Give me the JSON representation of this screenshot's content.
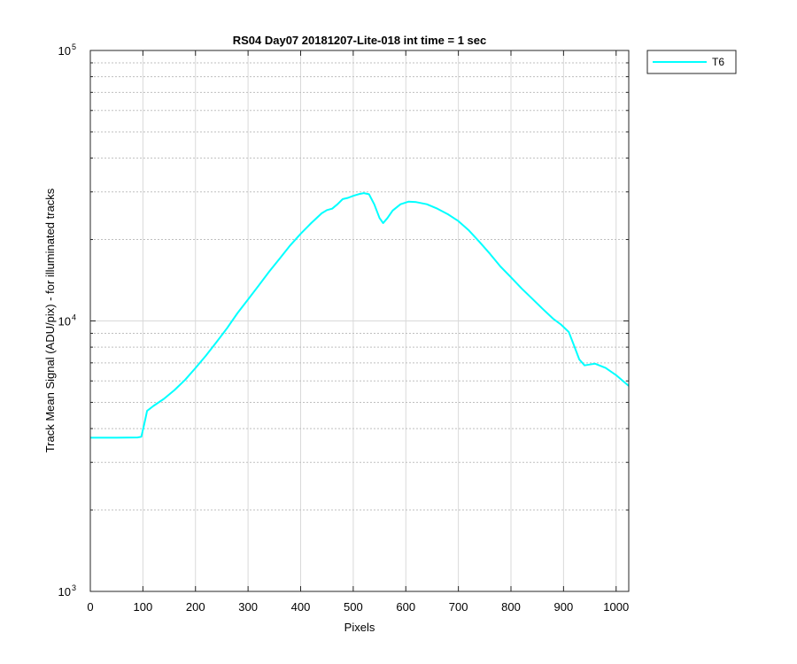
{
  "chart_data": {
    "type": "line",
    "title": "RS04 Day07 20181207-Lite-018 int time = 1 sec",
    "xlabel": "Pixels",
    "ylabel": "Track Mean Signal (ADU/pix) - for illuminated tracks",
    "xlim": [
      0,
      1024
    ],
    "ylim": [
      1000,
      100000
    ],
    "yscale": "log",
    "grid": true,
    "minor_grid": true,
    "legend_position": "outside-top-right",
    "x_ticks": [
      "0",
      "100",
      "200",
      "300",
      "400",
      "500",
      "600",
      "700",
      "800",
      "900",
      "1000"
    ],
    "y_ticks": [
      {
        "base": "10",
        "exp": "3"
      },
      {
        "base": "10",
        "exp": "4"
      },
      {
        "base": "10",
        "exp": "5"
      }
    ],
    "series": [
      {
        "name": "T6",
        "color": "#00ffff",
        "points": [
          [
            0,
            3700
          ],
          [
            50,
            3700
          ],
          [
            90,
            3710
          ],
          [
            97,
            3730
          ],
          [
            103,
            4200
          ],
          [
            108,
            4650
          ],
          [
            120,
            4850
          ],
          [
            140,
            5150
          ],
          [
            160,
            5550
          ],
          [
            180,
            6050
          ],
          [
            200,
            6700
          ],
          [
            220,
            7450
          ],
          [
            240,
            8350
          ],
          [
            260,
            9400
          ],
          [
            280,
            10700
          ],
          [
            300,
            12000
          ],
          [
            320,
            13500
          ],
          [
            340,
            15200
          ],
          [
            360,
            17000
          ],
          [
            380,
            19000
          ],
          [
            400,
            21000
          ],
          [
            420,
            23000
          ],
          [
            440,
            25000
          ],
          [
            450,
            25700
          ],
          [
            460,
            26000
          ],
          [
            470,
            27000
          ],
          [
            480,
            28200
          ],
          [
            490,
            28500
          ],
          [
            500,
            29000
          ],
          [
            510,
            29400
          ],
          [
            520,
            29700
          ],
          [
            530,
            29400
          ],
          [
            540,
            27000
          ],
          [
            550,
            24000
          ],
          [
            557,
            23000
          ],
          [
            565,
            24000
          ],
          [
            575,
            25600
          ],
          [
            590,
            27000
          ],
          [
            605,
            27600
          ],
          [
            620,
            27500
          ],
          [
            640,
            27000
          ],
          [
            660,
            26000
          ],
          [
            680,
            24800
          ],
          [
            700,
            23400
          ],
          [
            720,
            21600
          ],
          [
            740,
            19600
          ],
          [
            760,
            17700
          ],
          [
            780,
            15900
          ],
          [
            800,
            14500
          ],
          [
            820,
            13200
          ],
          [
            840,
            12100
          ],
          [
            860,
            11100
          ],
          [
            880,
            10200
          ],
          [
            895,
            9700
          ],
          [
            910,
            9100
          ],
          [
            920,
            8100
          ],
          [
            930,
            7200
          ],
          [
            940,
            6850
          ],
          [
            950,
            6900
          ],
          [
            960,
            6950
          ],
          [
            980,
            6700
          ],
          [
            1000,
            6300
          ],
          [
            1015,
            5950
          ],
          [
            1024,
            5750
          ]
        ]
      }
    ]
  }
}
